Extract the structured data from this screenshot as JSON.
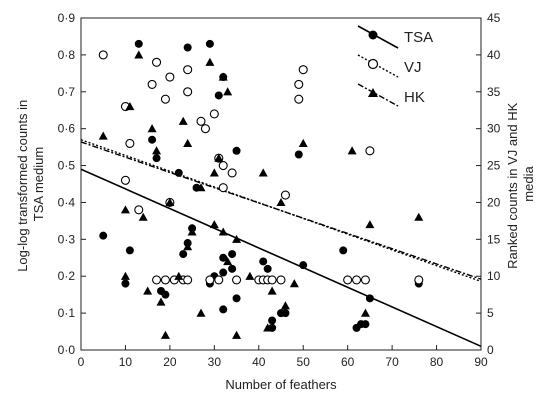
{
  "chart_data": {
    "type": "scatter",
    "title": "",
    "xlabel": "Number of feathers",
    "ylabel_left_lines": [
      "Log-log transformed counts in",
      "TSA medium"
    ],
    "ylabel_right_lines": [
      "Ranked counts in VJ and HK",
      "media"
    ],
    "xlim": [
      0,
      90
    ],
    "ylim_left": [
      0,
      0.9
    ],
    "ylim_right": [
      0,
      45
    ],
    "x_ticks": [
      0,
      10,
      20,
      30,
      40,
      50,
      60,
      70,
      80,
      90
    ],
    "x_tick_labels": [
      "0",
      "10",
      "20",
      "30",
      "40",
      "50",
      "60",
      "70",
      "80",
      "90"
    ],
    "y_left_ticks": [
      0,
      0.1,
      0.2,
      0.3,
      0.4,
      0.5,
      0.6,
      0.7,
      0.8,
      0.9
    ],
    "y_left_tick_labels": [
      "0·0",
      "0·1",
      "0·2",
      "0·3",
      "0·4",
      "0·5",
      "0·6",
      "0·7",
      "0·8",
      "0·9"
    ],
    "y_right_ticks": [
      0,
      5,
      10,
      15,
      20,
      25,
      30,
      35,
      40,
      45
    ],
    "y_right_tick_labels": [
      "0",
      "5",
      "10",
      "15",
      "20",
      "25",
      "30",
      "35",
      "40",
      "45"
    ],
    "legend_position": "top-right",
    "grid": false,
    "series": [
      {
        "name": "TSA",
        "marker": "filled-circle",
        "line_style": "solid",
        "axis": "left",
        "regression": {
          "x": [
            0,
            90
          ],
          "y": [
            0.49,
            0.01
          ]
        },
        "points": [
          [
            5,
            0.31
          ],
          [
            10,
            0.18
          ],
          [
            11,
            0.27
          ],
          [
            13,
            0.83
          ],
          [
            16,
            0.57
          ],
          [
            17,
            0.52
          ],
          [
            18,
            0.16
          ],
          [
            19,
            0.15
          ],
          [
            20,
            0.4
          ],
          [
            22,
            0.48
          ],
          [
            23,
            0.26
          ],
          [
            24,
            0.82
          ],
          [
            24,
            0.29
          ],
          [
            25,
            0.33
          ],
          [
            26,
            0.44
          ],
          [
            29,
            0.83
          ],
          [
            29,
            0.18
          ],
          [
            30,
            0.2
          ],
          [
            31,
            0.69
          ],
          [
            32,
            0.74
          ],
          [
            32,
            0.25
          ],
          [
            32,
            0.21
          ],
          [
            32,
            0.11
          ],
          [
            34,
            0.26
          ],
          [
            34,
            0.22
          ],
          [
            35,
            0.54
          ],
          [
            35,
            0.14
          ],
          [
            41,
            0.24
          ],
          [
            42,
            0.22
          ],
          [
            43,
            0.08
          ],
          [
            43,
            0.06
          ],
          [
            45,
            0.1
          ],
          [
            46,
            0.1
          ],
          [
            49,
            0.53
          ],
          [
            50,
            0.23
          ],
          [
            59,
            0.27
          ],
          [
            62,
            0.06
          ],
          [
            63,
            0.07
          ],
          [
            64,
            0.07
          ],
          [
            65,
            0.14
          ],
          [
            76,
            0.18
          ]
        ]
      },
      {
        "name": "VJ",
        "marker": "open-circle",
        "line_style": "dotted",
        "axis": "right",
        "regression": {
          "x": [
            0,
            90
          ],
          "y": [
            28.5,
            9.3
          ]
        },
        "points": [
          [
            5,
            40
          ],
          [
            10,
            33
          ],
          [
            10,
            23
          ],
          [
            11,
            28
          ],
          [
            13,
            19
          ],
          [
            16,
            36
          ],
          [
            17,
            39
          ],
          [
            17,
            9.5
          ],
          [
            19,
            34
          ],
          [
            19,
            9.5
          ],
          [
            20,
            37
          ],
          [
            20,
            20
          ],
          [
            21,
            9.5
          ],
          [
            23,
            9.5
          ],
          [
            24,
            38
          ],
          [
            24,
            35
          ],
          [
            24,
            9.5
          ],
          [
            27,
            31
          ],
          [
            28,
            30
          ],
          [
            29,
            9.5
          ],
          [
            30,
            32
          ],
          [
            31,
            26
          ],
          [
            31,
            9.5
          ],
          [
            32,
            25
          ],
          [
            32,
            22
          ],
          [
            34,
            24
          ],
          [
            35,
            9.5
          ],
          [
            40,
            9.5
          ],
          [
            41,
            9.5
          ],
          [
            42,
            9.5
          ],
          [
            43,
            9.5
          ],
          [
            45,
            9.5
          ],
          [
            46,
            21
          ],
          [
            49,
            36
          ],
          [
            49,
            34
          ],
          [
            50,
            38
          ],
          [
            60,
            9.5
          ],
          [
            62,
            9.5
          ],
          [
            64,
            9.5
          ],
          [
            65,
            27
          ],
          [
            76,
            9.5
          ]
        ]
      },
      {
        "name": "HK",
        "marker": "filled-triangle",
        "line_style": "dash-dot",
        "axis": "right",
        "regression": {
          "x": [
            0,
            90
          ],
          "y": [
            28.2,
            9.6
          ]
        },
        "points": [
          [
            5,
            29
          ],
          [
            10,
            19
          ],
          [
            11,
            33
          ],
          [
            13,
            40
          ],
          [
            14,
            18
          ],
          [
            16,
            30
          ],
          [
            17,
            27
          ],
          [
            18,
            6.5
          ],
          [
            19,
            2
          ],
          [
            20,
            20
          ],
          [
            23,
            31
          ],
          [
            24,
            28
          ],
          [
            24,
            14
          ],
          [
            25,
            16
          ],
          [
            27,
            22
          ],
          [
            29,
            39
          ],
          [
            30,
            24
          ],
          [
            30,
            17
          ],
          [
            31,
            26
          ],
          [
            32,
            37
          ],
          [
            32,
            16
          ],
          [
            33,
            12
          ],
          [
            35,
            15
          ],
          [
            35,
            2
          ],
          [
            41,
            24
          ],
          [
            43,
            8
          ],
          [
            45,
            20
          ],
          [
            46,
            6
          ],
          [
            50,
            28
          ],
          [
            61,
            27
          ],
          [
            65,
            17
          ],
          [
            76,
            18
          ],
          [
            22,
            10
          ],
          [
            10,
            10
          ],
          [
            15,
            8
          ],
          [
            38,
            10
          ],
          [
            64,
            5
          ],
          [
            48,
            9
          ],
          [
            42,
            3
          ],
          [
            27,
            5
          ],
          [
            33,
            35
          ]
        ]
      }
    ]
  }
}
